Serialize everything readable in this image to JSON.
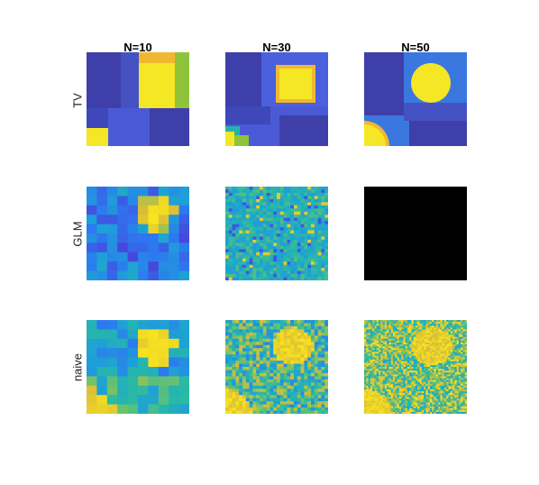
{
  "columns": [
    "N=10",
    "N=30",
    "N=50"
  ],
  "rows": [
    "TV",
    "GLM",
    "naive"
  ],
  "colors": {
    "dark_blue": "#3e3fa8",
    "blue": "#4a5ad6",
    "mid_blue": "#3a78e0",
    "teal": "#26b4a8",
    "green": "#8fc43a",
    "orange": "#f0b830",
    "yellow": "#f5e626",
    "black": "#000000"
  }
}
